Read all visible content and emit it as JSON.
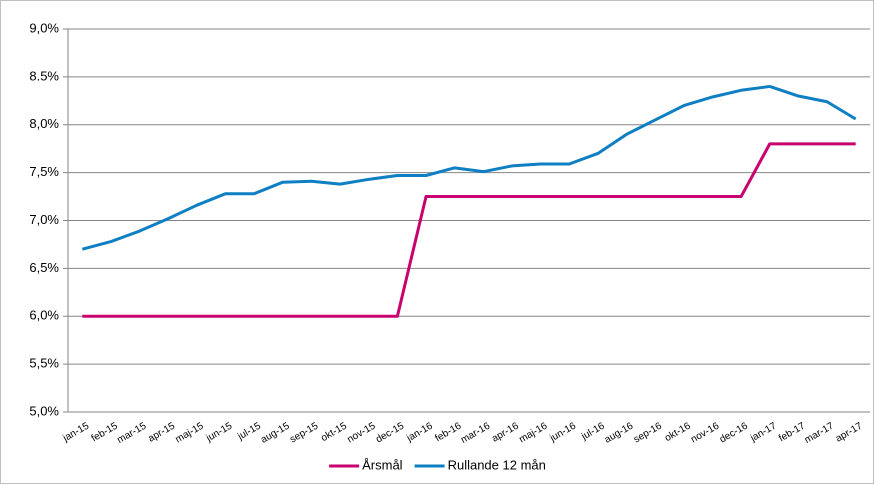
{
  "chart_data": {
    "type": "line",
    "categories": [
      "jan-15",
      "feb-15",
      "mar-15",
      "apr-15",
      "maj-15",
      "jun-15",
      "jul-15",
      "aug-15",
      "sep-15",
      "okt-15",
      "nov-15",
      "dec-15",
      "jan-16",
      "feb-16",
      "mar-16",
      "apr-16",
      "maj-16",
      "jun-16",
      "jul-16",
      "aug-16",
      "sep-16",
      "okt-16",
      "nov-16",
      "dec-16",
      "jan-17",
      "feb-17",
      "mar-17",
      "apr-17"
    ],
    "series": [
      {
        "name": "Årsmål",
        "color": "#c8026e",
        "values": [
          6.0,
          6.0,
          6.0,
          6.0,
          6.0,
          6.0,
          6.0,
          6.0,
          6.0,
          6.0,
          6.0,
          6.0,
          7.25,
          7.25,
          7.25,
          7.25,
          7.25,
          7.25,
          7.25,
          7.25,
          7.25,
          7.25,
          7.25,
          7.25,
          7.8,
          7.8,
          7.8,
          7.8
        ]
      },
      {
        "name": "Rullande 12 mån",
        "color": "#0f7fc3",
        "values": [
          6.7,
          6.78,
          6.89,
          7.02,
          7.16,
          7.28,
          7.28,
          7.4,
          7.41,
          7.38,
          7.43,
          7.47,
          7.47,
          7.55,
          7.51,
          7.57,
          7.59,
          7.59,
          7.7,
          7.9,
          8.05,
          8.2,
          8.29,
          8.36,
          8.4,
          8.3,
          8.24,
          8.06
        ]
      }
    ],
    "ylim": [
      5,
      9
    ],
    "yticks": [
      {
        "value": 5,
        "label": "5,0%"
      },
      {
        "value": 5.5,
        "label": "5,5%"
      },
      {
        "value": 6,
        "label": "6,0%"
      },
      {
        "value": 6.5,
        "label": "6,5%"
      },
      {
        "value": 7,
        "label": "7,0%"
      },
      {
        "value": 7.5,
        "label": "7,5%"
      },
      {
        "value": 8,
        "label": "8,0%"
      },
      {
        "value": 8.5,
        "label": "8.5%"
      },
      {
        "value": 9,
        "label": "9,0%"
      }
    ],
    "grid": true,
    "legend": "bottom"
  }
}
